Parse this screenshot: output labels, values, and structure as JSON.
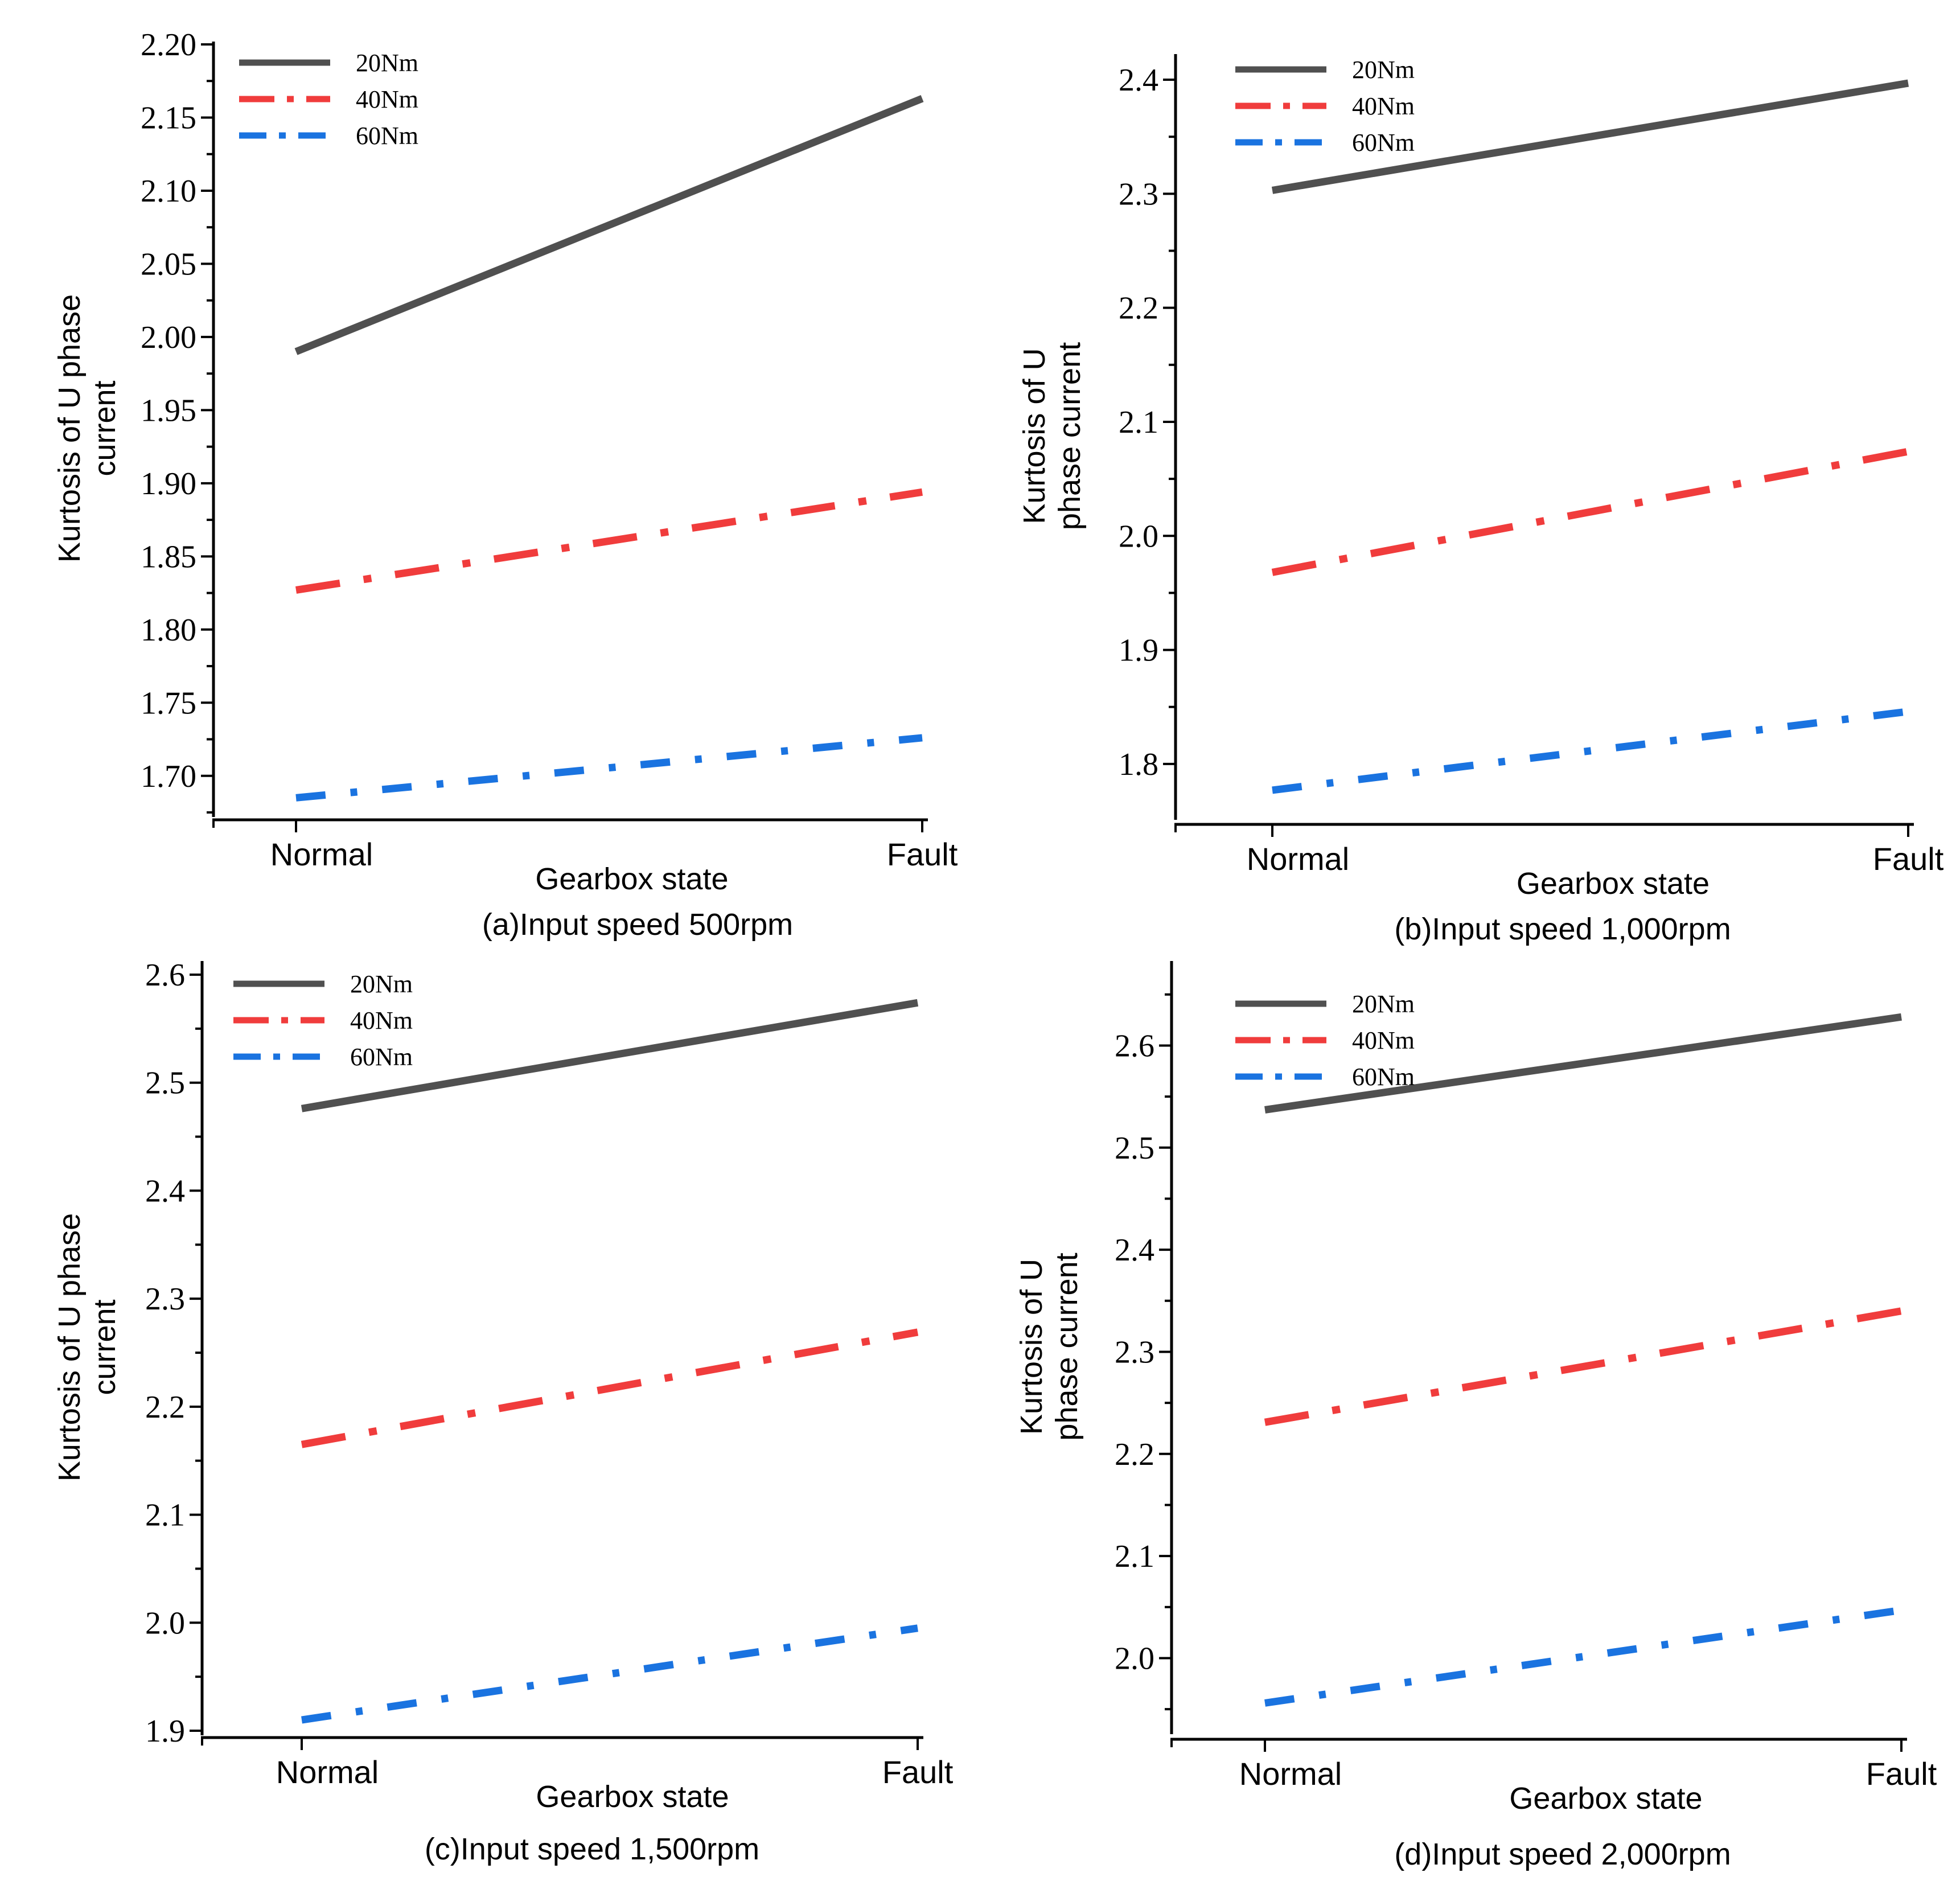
{
  "colors": {
    "20Nm": "#505050",
    "40Nm": "#f03c3c",
    "60Nm": "#1a73e0",
    "axis": "#000000"
  },
  "chart_data": [
    {
      "type": "line",
      "caption": "(a)Input speed 500rpm",
      "xlabel": "Gearbox state",
      "ylabel_lines": [
        "Kurtosis of U phase",
        "current"
      ],
      "categories": [
        "Normal",
        "Fault"
      ],
      "ylim": [
        1.675,
        2.2
      ],
      "yticks": [
        "1.70",
        "1.75",
        "1.80",
        "1.85",
        "1.90",
        "1.95",
        "2.00",
        "2.05",
        "2.10",
        "2.15",
        "2.20"
      ],
      "legend": "top-left",
      "series": [
        {
          "name": "20Nm",
          "values": [
            1.99,
            2.163
          ]
        },
        {
          "name": "40Nm",
          "values": [
            1.827,
            1.894
          ]
        },
        {
          "name": "60Nm",
          "values": [
            1.685,
            1.726
          ]
        }
      ]
    },
    {
      "type": "line",
      "caption": "(b)Input speed 1,000rpm",
      "xlabel": "Gearbox state",
      "ylabel_lines": [
        "Kurtosis of U",
        "phase current"
      ],
      "categories": [
        "Normal",
        "Fault"
      ],
      "ylim": [
        1.755,
        2.42
      ],
      "yticks": [
        "1.8",
        "1.9",
        "2.0",
        "2.1",
        "2.2",
        "2.3",
        "2.4"
      ],
      "legend": "top-left",
      "series": [
        {
          "name": "20Nm",
          "values": [
            2.303,
            2.397
          ]
        },
        {
          "name": "40Nm",
          "values": [
            1.968,
            2.074
          ]
        },
        {
          "name": "60Nm",
          "values": [
            1.777,
            1.846
          ]
        }
      ]
    },
    {
      "type": "line",
      "caption": "(c)Input speed 1,500rpm",
      "xlabel": "Gearbox state",
      "ylabel_lines": [
        "Kurtosis of U phase",
        "current"
      ],
      "categories": [
        "Normal",
        "Fault"
      ],
      "ylim": [
        1.9,
        2.61
      ],
      "yticks": [
        "1.9",
        "2.0",
        "2.1",
        "2.2",
        "2.3",
        "2.4",
        "2.5",
        "2.6"
      ],
      "legend": "top-left",
      "series": [
        {
          "name": "20Nm",
          "values": [
            2.476,
            2.574
          ]
        },
        {
          "name": "40Nm",
          "values": [
            2.165,
            2.269
          ]
        },
        {
          "name": "60Nm",
          "values": [
            1.91,
            1.995
          ]
        }
      ]
    },
    {
      "type": "line",
      "caption": "(d)Input speed 2,000rpm",
      "xlabel": "Gearbox state",
      "ylabel_lines": [
        "Kurtosis of U",
        "phase current"
      ],
      "categories": [
        "Normal",
        "Fault"
      ],
      "ylim": [
        1.93,
        2.68
      ],
      "yticks": [
        "2.0",
        "2.1",
        "2.2",
        "2.3",
        "2.4",
        "2.5",
        "2.6"
      ],
      "legend": "top-left",
      "series": [
        {
          "name": "20Nm",
          "values": [
            2.537,
            2.628
          ]
        },
        {
          "name": "40Nm",
          "values": [
            2.231,
            2.34
          ]
        },
        {
          "name": "60Nm",
          "values": [
            1.956,
            2.047
          ]
        }
      ]
    }
  ]
}
